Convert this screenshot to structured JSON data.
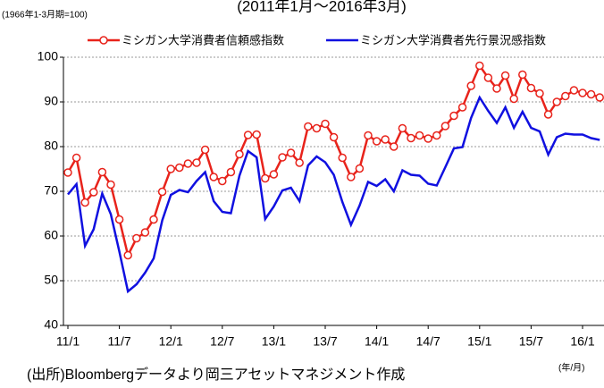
{
  "chart_data": {
    "type": "line",
    "title": "(2011年1月～2016年3月)",
    "y_axis_label": "(1966年1-3月期=100)",
    "x_axis_label": "(年/月)",
    "source": "(出所)Bloombergデータより岡三アセットマネジメント作成",
    "categories": [
      "11/1",
      null,
      null,
      null,
      null,
      null,
      "11/7",
      null,
      null,
      null,
      null,
      null,
      "12/1",
      null,
      null,
      null,
      null,
      null,
      "12/7",
      null,
      null,
      null,
      null,
      null,
      "13/1",
      null,
      null,
      null,
      null,
      null,
      "13/7",
      null,
      null,
      null,
      null,
      null,
      "14/1",
      null,
      null,
      null,
      null,
      null,
      "14/7",
      null,
      null,
      null,
      null,
      null,
      "15/1",
      null,
      null,
      null,
      null,
      null,
      "15/7",
      null,
      null,
      null,
      null,
      null,
      "16/1",
      null,
      null
    ],
    "series": [
      {
        "name": "ミシガン大学消費者信頼感指数",
        "color": "#e8231b",
        "marker": "circle",
        "values": [
          74.2,
          77.5,
          67.5,
          69.8,
          74.3,
          71.5,
          63.7,
          55.7,
          59.5,
          60.8,
          63.7,
          69.9,
          75.0,
          75.3,
          76.2,
          76.4,
          79.3,
          73.2,
          72.3,
          74.3,
          78.3,
          82.6,
          82.7,
          72.9,
          73.8,
          77.6,
          78.6,
          76.4,
          84.5,
          84.1,
          85.1,
          82.1,
          77.5,
          73.2,
          75.1,
          82.5,
          81.2,
          81.6,
          80.0,
          84.1,
          81.9,
          82.5,
          81.8,
          82.5,
          84.6,
          86.9,
          88.8,
          93.6,
          98.1,
          95.4,
          93.0,
          95.9,
          90.7,
          96.1,
          93.1,
          91.9,
          87.2,
          90.0,
          91.3,
          92.6,
          92.0,
          91.7,
          91.0
        ]
      },
      {
        "name": "ミシガン大学消費者先行景況感指数",
        "color": "#1010e0",
        "values": [
          69.3,
          71.6,
          57.8,
          61.5,
          69.5,
          64.9,
          56.5,
          47.6,
          49.2,
          51.8,
          55.0,
          63.5,
          69.2,
          70.3,
          69.8,
          72.3,
          74.3,
          67.8,
          65.4,
          65.1,
          73.5,
          79.0,
          77.6,
          63.8,
          66.6,
          70.2,
          70.8,
          67.8,
          75.8,
          77.8,
          76.5,
          73.7,
          67.6,
          62.5,
          66.8,
          72.1,
          71.2,
          72.7,
          70.0,
          74.7,
          73.7,
          73.5,
          71.7,
          71.3,
          75.4,
          79.6,
          79.9,
          86.4,
          91.0,
          88.0,
          85.3,
          88.8,
          84.2,
          87.8,
          84.2,
          83.4,
          78.2,
          82.1,
          82.9,
          82.7,
          82.7,
          81.9,
          81.5
        ]
      }
    ],
    "ylim": [
      40,
      100
    ],
    "yticks": [
      40,
      50,
      60,
      70,
      80,
      90,
      100
    ],
    "grid": true,
    "legend": "top"
  }
}
